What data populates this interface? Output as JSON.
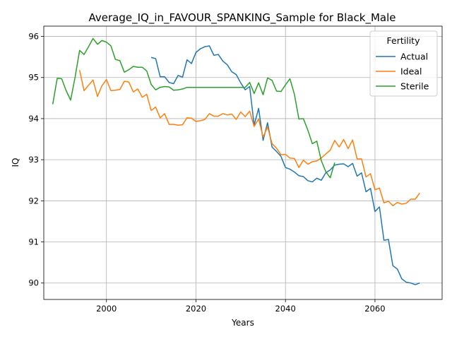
{
  "chart_data": {
    "type": "line",
    "title": "Average_IQ_in_FAVOUR_SPANKING_Sample for Black_Male",
    "xlabel": "Years",
    "ylabel": "IQ",
    "xlim": [
      1986,
      2075
    ],
    "ylim": [
      89.6,
      96.25
    ],
    "xticks": [
      2000,
      2020,
      2040,
      2060
    ],
    "yticks": [
      90,
      91,
      92,
      93,
      94,
      95,
      96
    ],
    "grid": true,
    "legend": {
      "title": "Fertility",
      "placement": "top-right"
    },
    "series": [
      {
        "name": "Actual",
        "color": "#1f77b4",
        "x": [
          2010,
          2011,
          2012,
          2013,
          2014,
          2015,
          2016,
          2017,
          2018,
          2019,
          2020,
          2021,
          2022,
          2023,
          2024,
          2025,
          2026,
          2027,
          2028,
          2029,
          2030,
          2031,
          2032,
          2033,
          2034,
          2035,
          2036,
          2037,
          2038,
          2039,
          2040,
          2041,
          2042,
          2043,
          2044,
          2045,
          2046,
          2047,
          2048,
          2049,
          2050,
          2051,
          2052,
          2053,
          2054,
          2055,
          2056,
          2057,
          2058,
          2059,
          2060,
          2061,
          2062,
          2063,
          2064,
          2065,
          2066,
          2067,
          2068,
          2069,
          2070
        ],
        "y": [
          95.49,
          95.46,
          95.02,
          95.02,
          94.88,
          94.85,
          95.05,
          95.01,
          95.43,
          95.34,
          95.61,
          95.7,
          95.75,
          95.77,
          95.54,
          95.56,
          95.4,
          95.31,
          95.14,
          95.07,
          94.87,
          94.7,
          94.78,
          93.84,
          94.25,
          93.47,
          93.9,
          93.31,
          93.2,
          93.08,
          92.81,
          92.77,
          92.7,
          92.61,
          92.59,
          92.49,
          92.46,
          92.55,
          92.5,
          92.68,
          92.75,
          92.87,
          92.89,
          92.9,
          92.83,
          92.91,
          92.6,
          92.68,
          92.22,
          92.3,
          91.74,
          91.85,
          91.04,
          91.06,
          90.42,
          90.34,
          90.1,
          90.02,
          90.0,
          89.96,
          90.0
        ]
      },
      {
        "name": "Ideal",
        "color": "#ff7f0e",
        "x": [
          1994,
          1995,
          1996,
          1997,
          1998,
          1999,
          2000,
          2001,
          2002,
          2003,
          2004,
          2005,
          2006,
          2007,
          2008,
          2009,
          2010,
          2011,
          2012,
          2013,
          2014,
          2015,
          2016,
          2017,
          2018,
          2019,
          2020,
          2021,
          2022,
          2023,
          2024,
          2025,
          2026,
          2027,
          2028,
          2029,
          2030,
          2031,
          2032,
          2033,
          2034,
          2035,
          2036,
          2037,
          2038,
          2039,
          2040,
          2041,
          2042,
          2043,
          2044,
          2045,
          2046,
          2047,
          2048,
          2049,
          2050,
          2051,
          2052,
          2053,
          2054,
          2055,
          2056,
          2057,
          2058,
          2059,
          2060,
          2061,
          2062,
          2063,
          2064,
          2065,
          2066,
          2067,
          2068,
          2069,
          2070
        ],
        "y": [
          95.18,
          94.68,
          94.81,
          94.94,
          94.54,
          94.8,
          94.95,
          94.68,
          94.69,
          94.71,
          94.91,
          94.89,
          94.65,
          94.72,
          94.52,
          94.59,
          94.2,
          94.28,
          94.02,
          94.12,
          93.86,
          93.86,
          93.84,
          93.85,
          94.02,
          94.01,
          93.93,
          93.95,
          93.98,
          94.12,
          94.06,
          94.06,
          94.12,
          94.09,
          94.11,
          93.98,
          94.16,
          94.05,
          94.18,
          93.81,
          93.99,
          93.55,
          93.8,
          93.39,
          93.28,
          93.12,
          93.13,
          93.04,
          93.03,
          92.81,
          92.99,
          92.89,
          92.95,
          92.97,
          93.04,
          93.14,
          93.23,
          93.47,
          93.31,
          93.49,
          93.27,
          93.48,
          93.02,
          93.02,
          92.58,
          92.66,
          92.27,
          92.31,
          91.95,
          91.99,
          91.88,
          91.96,
          91.92,
          91.94,
          92.04,
          92.04,
          92.19
        ]
      },
      {
        "name": "Sterile",
        "color": "#2ca02c",
        "x": [
          1988,
          1989,
          1990,
          1991,
          1992,
          1993,
          1994,
          1995,
          1996,
          1997,
          1998,
          1999,
          2000,
          2001,
          2002,
          2003,
          2004,
          2005,
          2006,
          2007,
          2008,
          2009,
          2010,
          2011,
          2012,
          2013,
          2014,
          2015,
          2016,
          2017,
          2018,
          2019,
          2020,
          2021,
          2022,
          2023,
          2024,
          2025,
          2026,
          2027,
          2028,
          2029,
          2030,
          2031,
          2032,
          2033,
          2034,
          2035,
          2036,
          2037,
          2038,
          2039,
          2040,
          2041,
          2042,
          2043,
          2044,
          2045,
          2046,
          2047,
          2048,
          2049,
          2050,
          2051
        ],
        "y": [
          94.35,
          94.98,
          94.97,
          94.68,
          94.45,
          95.01,
          95.66,
          95.56,
          95.75,
          95.95,
          95.81,
          95.9,
          95.86,
          95.77,
          95.44,
          95.41,
          95.13,
          95.19,
          95.27,
          95.25,
          95.25,
          95.16,
          94.83,
          94.7,
          94.76,
          94.78,
          94.77,
          94.69,
          94.7,
          94.72,
          94.76,
          94.76,
          94.76,
          94.76,
          94.76,
          94.76,
          94.76,
          94.76,
          94.76,
          94.76,
          94.76,
          94.76,
          94.76,
          94.76,
          94.88,
          94.61,
          94.87,
          94.58,
          94.99,
          94.93,
          94.67,
          94.66,
          94.82,
          94.97,
          94.59,
          93.99,
          94.0,
          93.72,
          93.39,
          93.45,
          92.98,
          92.71,
          92.56,
          92.93
        ]
      }
    ]
  }
}
